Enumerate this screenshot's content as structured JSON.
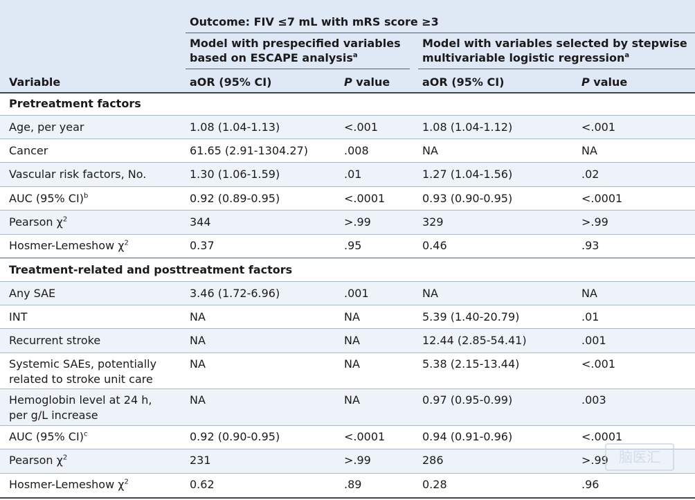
{
  "header": {
    "outcome": "Outcome: FIV ≤7 mL with mRS score ≥3",
    "model1_line1": "Model with prespecified variables",
    "model1_line2": "based on ESCAPE analysis",
    "model1_sup": "a",
    "model2_line1": "Model with variables selected by stepwise",
    "model2_line2": "multivariable logistic regression",
    "model2_sup": "a",
    "variable": "Variable",
    "aor1": "aOR (95% CI)",
    "p1_italic": "P",
    "p1_rest": " value",
    "aor2": "aOR (95% CI)",
    "p2_italic": "P",
    "p2_rest": " value"
  },
  "sections": [
    {
      "title": "Pretreatment factors",
      "rows": [
        {
          "var": "Age, per year",
          "aor1": "1.08 (1.04-1.13)",
          "p1": "<.001",
          "aor2": "1.08 (1.04-1.12)",
          "p2": "<.001"
        },
        {
          "var": "Cancer",
          "aor1": "61.65 (2.91-1304.27)",
          "p1": ".008",
          "aor2": "NA",
          "p2": "NA"
        },
        {
          "var": "Vascular risk factors, No.",
          "aor1": "1.30 (1.06-1.59)",
          "p1": ".01",
          "aor2": "1.27 (1.04-1.56)",
          "p2": ".02"
        },
        {
          "var": "AUC (95% CI)",
          "var_sup": "b",
          "aor1": "0.92 (0.89-0.95)",
          "p1": "<.0001",
          "aor2": "0.93 (0.90-0.95)",
          "p2": "<.0001"
        },
        {
          "var": "Pearson χ",
          "var_sup": "2",
          "aor1": "344",
          "p1": ">.99",
          "aor2": "329",
          "p2": ">.99"
        },
        {
          "var": "Hosmer-Lemeshow χ",
          "var_sup": "2",
          "aor1": "0.37",
          "p1": ".95",
          "aor2": "0.46",
          "p2": ".93"
        }
      ]
    },
    {
      "title": "Treatment-related and posttreatment factors",
      "rows": [
        {
          "var": "Any SAE",
          "aor1": "3.46 (1.72-6.96)",
          "p1": ".001",
          "aor2": "NA",
          "p2": "NA"
        },
        {
          "var": "INT",
          "aor1": "NA",
          "p1": "NA",
          "aor2": "5.39 (1.40-20.79)",
          "p2": ".01"
        },
        {
          "var": "Recurrent stroke",
          "aor1": "NA",
          "p1": "NA",
          "aor2": "12.44 (2.85-54.41)",
          "p2": ".001"
        },
        {
          "var": "Systemic SAEs, potentially",
          "var2": "related to stroke unit care",
          "aor1": "NA",
          "p1": "NA",
          "aor2": "5.38 (2.15-13.44)",
          "p2": "<.001"
        },
        {
          "var": "Hemoglobin level at 24 h,",
          "var2": "per g/L increase",
          "aor1": "NA",
          "p1": "NA",
          "aor2": "0.97 (0.95-0.99)",
          "p2": ".003"
        },
        {
          "var": "AUC (95% CI)",
          "var_sup": "c",
          "aor1": "0.92 (0.90-0.95)",
          "p1": "<.0001",
          "aor2": "0.94 (0.91-0.96)",
          "p2": "<.0001"
        },
        {
          "var": "Pearson χ",
          "var_sup": "2",
          "aor1": "231",
          "p1": ">.99",
          "aor2": "286",
          "p2": ">.99"
        },
        {
          "var": "Hosmer-Lemeshow χ",
          "var_sup": "2",
          "aor1": "0.62",
          "p1": ".89",
          "aor2": "0.28",
          "p2": ".96"
        }
      ]
    }
  ],
  "watermark": "脑医汇"
}
